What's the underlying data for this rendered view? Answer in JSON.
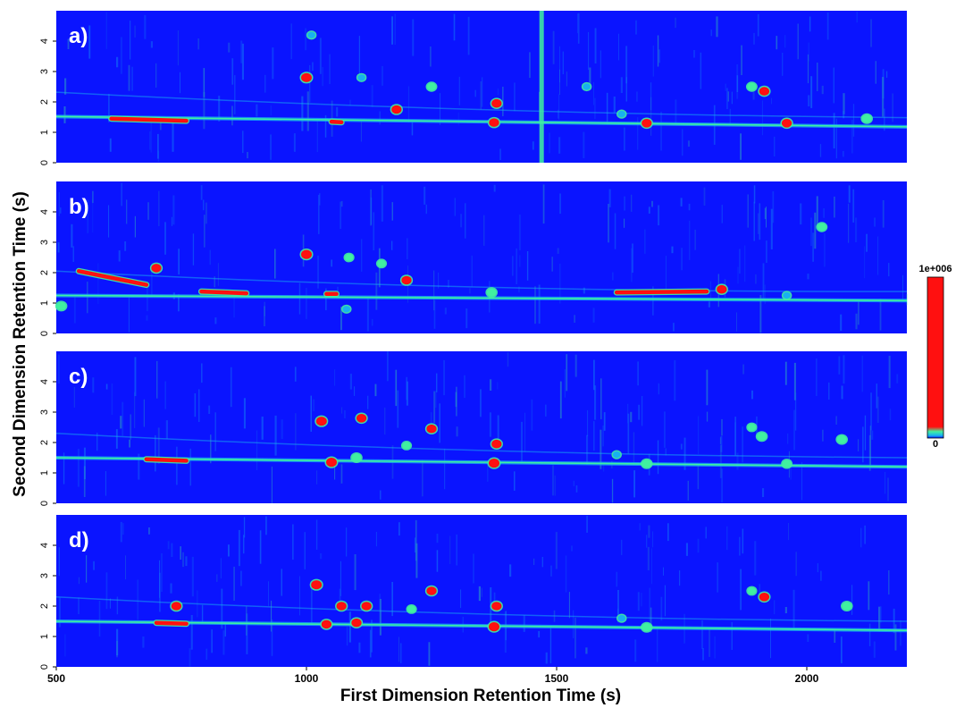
{
  "chart_data": {
    "type": "heatmap",
    "title": "",
    "xlabel": "First Dimension Retention Time (s)",
    "ylabel": "Second Dimension Retention Time (s)",
    "xlim": [
      500,
      2200
    ],
    "ylim": [
      0,
      5
    ],
    "x_ticks": [
      500,
      1000,
      1500,
      2000
    ],
    "y_ticks": [
      0,
      1,
      2,
      3,
      4
    ],
    "colorbar": {
      "min_label": "0",
      "max_label": "1e+006",
      "min": 0,
      "max": 1000000
    },
    "colors": {
      "background": "#0a14ff",
      "low": "#18b0f0",
      "mid": "#40f0a0",
      "high": "#ff1010"
    },
    "panels": [
      {
        "label": "a)",
        "baseline": [
          [
            500,
            1.52
          ],
          [
            2200,
            1.18
          ]
        ],
        "vertical_streaks": [
          1470
        ],
        "peaks": [
          {
            "x": 610,
            "y": 1.45,
            "x2": 760,
            "y2": 1.38,
            "i": 1.0
          },
          {
            "x": 1000,
            "y": 2.8,
            "i": 1.0
          },
          {
            "x": 1010,
            "y": 4.2,
            "i": 0.5
          },
          {
            "x": 1050,
            "y": 1.35,
            "x2": 1070,
            "y2": 1.33,
            "i": 1.0
          },
          {
            "x": 1110,
            "y": 2.8,
            "i": 0.5
          },
          {
            "x": 1180,
            "y": 1.75,
            "i": 0.9
          },
          {
            "x": 1250,
            "y": 2.5,
            "i": 0.7
          },
          {
            "x": 1380,
            "y": 1.95,
            "i": 0.9
          },
          {
            "x": 1375,
            "y": 1.32,
            "i": 0.9
          },
          {
            "x": 1560,
            "y": 2.5,
            "i": 0.5
          },
          {
            "x": 1630,
            "y": 1.6,
            "i": 0.5
          },
          {
            "x": 1680,
            "y": 1.3,
            "i": 0.9
          },
          {
            "x": 1890,
            "y": 2.5,
            "i": 0.7
          },
          {
            "x": 1915,
            "y": 2.35,
            "i": 0.9
          },
          {
            "x": 1960,
            "y": 1.3,
            "i": 0.9
          },
          {
            "x": 2120,
            "y": 1.45,
            "i": 0.8
          }
        ]
      },
      {
        "label": "b)",
        "baseline": [
          [
            500,
            1.25
          ],
          [
            2200,
            1.08
          ]
        ],
        "vertical_streaks": [],
        "peaks": [
          {
            "x": 545,
            "y": 2.05,
            "x2": 680,
            "y2": 1.6,
            "i": 1.0
          },
          {
            "x": 510,
            "y": 0.9,
            "i": 0.8
          },
          {
            "x": 700,
            "y": 2.15,
            "i": 0.9
          },
          {
            "x": 790,
            "y": 1.38,
            "x2": 880,
            "y2": 1.32,
            "i": 1.0
          },
          {
            "x": 1000,
            "y": 2.6,
            "i": 1.0
          },
          {
            "x": 1040,
            "y": 1.3,
            "x2": 1060,
            "y2": 1.3,
            "i": 1.0
          },
          {
            "x": 1080,
            "y": 0.8,
            "i": 0.5
          },
          {
            "x": 1085,
            "y": 2.5,
            "i": 0.6
          },
          {
            "x": 1150,
            "y": 2.3,
            "i": 0.6
          },
          {
            "x": 1200,
            "y": 1.75,
            "i": 0.9
          },
          {
            "x": 1370,
            "y": 1.35,
            "i": 0.8
          },
          {
            "x": 1620,
            "y": 1.35,
            "x2": 1800,
            "y2": 1.38,
            "i": 0.9
          },
          {
            "x": 1830,
            "y": 1.45,
            "i": 0.9
          },
          {
            "x": 2030,
            "y": 3.5,
            "i": 0.7
          },
          {
            "x": 1960,
            "y": 1.25,
            "i": 0.5
          }
        ]
      },
      {
        "label": "c)",
        "baseline": [
          [
            500,
            1.5
          ],
          [
            2200,
            1.2
          ]
        ],
        "vertical_streaks": [],
        "peaks": [
          {
            "x": 680,
            "y": 1.45,
            "x2": 760,
            "y2": 1.4,
            "i": 1.0
          },
          {
            "x": 1030,
            "y": 2.7,
            "i": 1.0
          },
          {
            "x": 1050,
            "y": 1.35,
            "i": 1.0
          },
          {
            "x": 1110,
            "y": 2.8,
            "i": 0.9
          },
          {
            "x": 1100,
            "y": 1.5,
            "i": 0.8
          },
          {
            "x": 1250,
            "y": 2.45,
            "i": 0.9
          },
          {
            "x": 1380,
            "y": 1.95,
            "i": 0.9
          },
          {
            "x": 1375,
            "y": 1.32,
            "i": 1.0
          },
          {
            "x": 1200,
            "y": 1.9,
            "i": 0.6
          },
          {
            "x": 1620,
            "y": 1.6,
            "i": 0.5
          },
          {
            "x": 1680,
            "y": 1.3,
            "i": 0.8
          },
          {
            "x": 1890,
            "y": 2.5,
            "i": 0.6
          },
          {
            "x": 1910,
            "y": 2.2,
            "i": 0.8
          },
          {
            "x": 2070,
            "y": 2.1,
            "i": 0.8
          },
          {
            "x": 1960,
            "y": 1.3,
            "i": 0.7
          }
        ]
      },
      {
        "label": "d)",
        "baseline": [
          [
            500,
            1.5
          ],
          [
            2200,
            1.2
          ]
        ],
        "vertical_streaks": [],
        "peaks": [
          {
            "x": 700,
            "y": 1.45,
            "x2": 760,
            "y2": 1.42,
            "i": 1.0
          },
          {
            "x": 740,
            "y": 2.0,
            "i": 0.9
          },
          {
            "x": 1020,
            "y": 2.7,
            "i": 1.0
          },
          {
            "x": 1040,
            "y": 1.4,
            "i": 0.9
          },
          {
            "x": 1070,
            "y": 2.0,
            "i": 0.9
          },
          {
            "x": 1100,
            "y": 1.45,
            "i": 0.9
          },
          {
            "x": 1120,
            "y": 2.0,
            "i": 0.9
          },
          {
            "x": 1250,
            "y": 2.5,
            "i": 0.9
          },
          {
            "x": 1375,
            "y": 1.32,
            "i": 1.0
          },
          {
            "x": 1380,
            "y": 2.0,
            "i": 0.9
          },
          {
            "x": 1210,
            "y": 1.9,
            "i": 0.6
          },
          {
            "x": 1630,
            "y": 1.6,
            "i": 0.5
          },
          {
            "x": 1680,
            "y": 1.3,
            "i": 0.8
          },
          {
            "x": 1890,
            "y": 2.5,
            "i": 0.6
          },
          {
            "x": 1915,
            "y": 2.3,
            "i": 0.9
          },
          {
            "x": 2080,
            "y": 2.0,
            "i": 0.8
          }
        ]
      }
    ]
  }
}
